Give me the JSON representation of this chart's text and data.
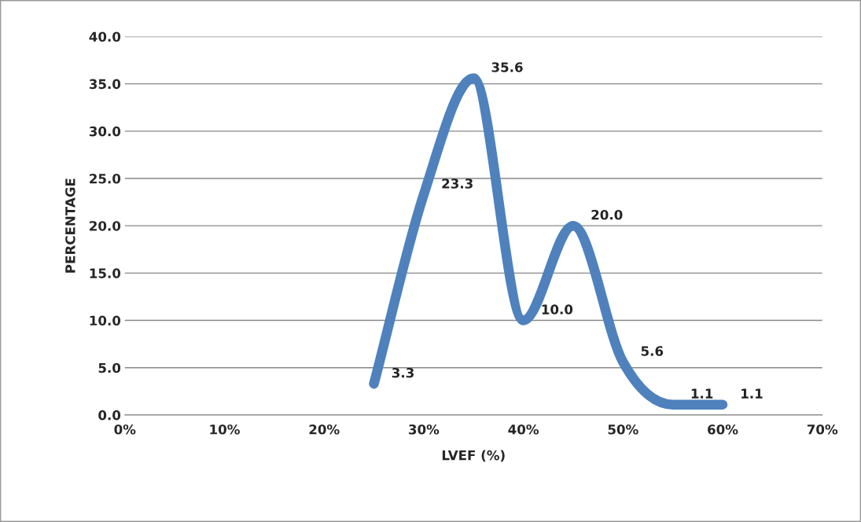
{
  "chart_data": {
    "type": "line",
    "xlabel": "LVEF (%)",
    "ylabel": "PERCENTAGE",
    "x": [
      25,
      30,
      35,
      40,
      45,
      50,
      55,
      60
    ],
    "series": [
      {
        "color": "#4f81bd",
        "values": [
          3.3,
          23.3,
          35.6,
          10.0,
          20.0,
          5.6,
          1.1,
          1.1
        ]
      }
    ],
    "value_labels": [
      "3.3",
      "23.3",
      "35.6",
      "10.0",
      "20.0",
      "5.6",
      "1.1",
      "1.1"
    ],
    "grid": "y",
    "legend": false,
    "line_style": "solid",
    "xlim": [
      0,
      70
    ],
    "xticks": [
      {
        "value": 0,
        "label": "0%"
      },
      {
        "value": 10,
        "label": "10%"
      },
      {
        "value": 20,
        "label": "20%"
      },
      {
        "value": 30,
        "label": "30%"
      },
      {
        "value": 40,
        "label": "40%"
      },
      {
        "value": 50,
        "label": "50%"
      },
      {
        "value": 60,
        "label": "60%"
      },
      {
        "value": 70,
        "label": "70%"
      }
    ],
    "ylim": [
      0,
      40
    ],
    "yticks": [
      {
        "value": 0,
        "label": "0.0"
      },
      {
        "value": 5,
        "label": "5.0"
      },
      {
        "value": 10,
        "label": "10.0"
      },
      {
        "value": 15,
        "label": "15.0"
      },
      {
        "value": 20,
        "label": "20.0"
      },
      {
        "value": 25,
        "label": "25.0"
      },
      {
        "value": 30,
        "label": "30.0"
      },
      {
        "value": 35,
        "label": "35.0"
      },
      {
        "value": 40,
        "label": "40.0"
      }
    ]
  }
}
